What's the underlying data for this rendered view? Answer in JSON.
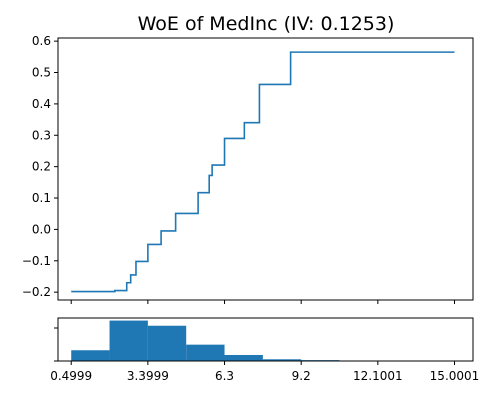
{
  "chart_data": {
    "type": "line",
    "title": "WoE of MedInc (IV: 0.1253)",
    "woe": {
      "type": "line",
      "step": "post",
      "x": [
        0.5,
        2.0,
        2.15,
        2.6,
        2.75,
        2.95,
        3.4,
        3.9,
        4.45,
        5.3,
        5.72,
        5.83,
        6.3,
        7.05,
        7.62,
        8.8,
        15.0
      ],
      "y": [
        -0.198,
        -0.198,
        -0.195,
        -0.17,
        -0.145,
        -0.102,
        -0.048,
        -0.005,
        0.051,
        0.117,
        0.172,
        0.205,
        0.29,
        0.34,
        0.462,
        0.565,
        0.565
      ],
      "xlim": [
        0.0,
        15.7
      ],
      "ylim": [
        -0.225,
        0.61
      ],
      "yticks": [
        -0.2,
        -0.1,
        0.0,
        0.1,
        0.2,
        0.3,
        0.4,
        0.5,
        0.6
      ],
      "ytick_labels": [
        "−0.2",
        "−0.1",
        "0.0",
        "0.1",
        "0.2",
        "0.3",
        "0.4",
        "0.5",
        "0.6"
      ],
      "color": "#1f77b4"
    },
    "histogram": {
      "type": "bar",
      "bin_edges": [
        0.4999,
        1.95,
        3.3999,
        4.85,
        6.3,
        7.75,
        9.2,
        10.65,
        12.1001,
        13.55,
        15.0001
      ],
      "counts": [
        0.25,
        0.94,
        0.82,
        0.38,
        0.14,
        0.04,
        0.02,
        0.0,
        0.0,
        0.0
      ],
      "ylim": [
        0,
        1.0
      ],
      "xticks": [
        0.4999,
        3.3999,
        6.3,
        9.2,
        12.1001,
        15.0001
      ],
      "xtick_labels": [
        "0.4999",
        "3.3999",
        "6.3",
        "9.2",
        "12.1001",
        "15.0001"
      ],
      "color": "#1f77b4"
    },
    "grid": false,
    "legend": "none"
  }
}
